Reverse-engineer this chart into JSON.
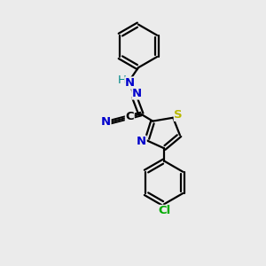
{
  "bg_color": "#ebebeb",
  "bond_color": "#000000",
  "atom_colors": {
    "N": "#0000cc",
    "S": "#b8b800",
    "Cl": "#00aa00",
    "H": "#008888",
    "C": "#000000"
  },
  "lw": 1.6,
  "fs": 9.5
}
